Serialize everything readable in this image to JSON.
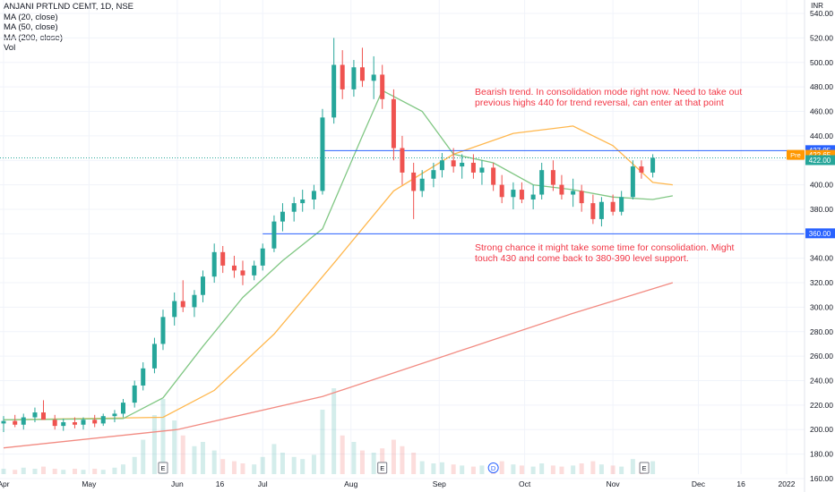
{
  "legend": {
    "symbol": "ANJANI PRTLND CEMT, 1D, NSE",
    "indicators": [
      "MA (20, close)",
      "MA (50, close)",
      "MA (200, close)",
      "Vol"
    ]
  },
  "currency": "INR",
  "annotations": {
    "bearish": [
      "Bearish trend. In consolidation mode right now. Need to take out",
      "previous highs 440 for trend reversal, can enter at that point"
    ],
    "strong": [
      "Strong chance it might take some time for consolidation. Might",
      "touch 430 and come back to 380-390 level support."
    ]
  },
  "colors": {
    "up": "#26a69a",
    "down": "#ef5350",
    "ma20": "#81c784",
    "ma50": "#ffb74d",
    "ma200": "#f28b82",
    "hline": "#2962ff",
    "annotation": "#f23645"
  },
  "chart_data": {
    "type": "candlestick",
    "y_ticks": [
      160,
      180,
      200,
      220,
      240,
      260,
      280,
      300,
      320,
      340,
      360,
      380,
      400,
      420,
      440,
      460,
      480,
      500,
      520,
      540
    ],
    "ylim": [
      149,
      551
    ],
    "x_labels": [
      {
        "label": "Apr",
        "date": "2021-04-01"
      },
      {
        "label": "May",
        "date": "2021-05-01"
      },
      {
        "label": "Jun",
        "date": "2021-06-01"
      },
      {
        "label": "16",
        "date": "2021-06-16"
      },
      {
        "label": "Jul",
        "date": "2021-07-01"
      },
      {
        "label": "Aug",
        "date": "2021-08-01"
      },
      {
        "label": "Sep",
        "date": "2021-09-01"
      },
      {
        "label": "Oct",
        "date": "2021-10-01"
      },
      {
        "label": "Nov",
        "date": "2021-11-01"
      },
      {
        "label": "Dec",
        "date": "2021-12-01"
      },
      {
        "label": "16",
        "date": "2021-12-16"
      },
      {
        "label": "2022",
        "date": "2022-01-01"
      }
    ],
    "price_labels": [
      {
        "value": 427.95,
        "text": "427.95",
        "kind": "line"
      },
      {
        "value": 422.65,
        "text": "422.65",
        "kind": "pre",
        "tag": "Pre"
      },
      {
        "value": 422.0,
        "text": "422.00",
        "kind": "last"
      },
      {
        "value": 360.0,
        "text": "360.00",
        "kind": "line"
      }
    ],
    "horizontal_lines": [
      {
        "value": 427.95,
        "from_date": "2021-07-22"
      },
      {
        "value": 360.0,
        "from_date": "2021-07-01"
      }
    ],
    "earnings_markers": [
      {
        "date": "2021-05-27",
        "label": "E"
      },
      {
        "date": "2021-08-12",
        "label": "E"
      },
      {
        "date": "2021-09-20",
        "label": "D"
      },
      {
        "date": "2021-11-12",
        "label": "E"
      }
    ],
    "ohlc": [
      [
        "2021-04-01",
        205,
        211,
        198,
        207
      ],
      [
        "2021-04-05",
        207,
        212,
        202,
        204
      ],
      [
        "2021-04-08",
        204,
        213,
        200,
        210
      ],
      [
        "2021-04-12",
        210,
        218,
        206,
        214
      ],
      [
        "2021-04-15",
        214,
        224,
        210,
        208
      ],
      [
        "2021-04-19",
        208,
        212,
        200,
        203
      ],
      [
        "2021-04-22",
        203,
        209,
        199,
        206
      ],
      [
        "2021-04-26",
        206,
        210,
        201,
        204
      ],
      [
        "2021-04-29",
        204,
        210,
        200,
        208
      ],
      [
        "2021-05-03",
        208,
        212,
        202,
        205
      ],
      [
        "2021-05-06",
        205,
        213,
        203,
        211
      ],
      [
        "2021-05-10",
        211,
        216,
        206,
        213
      ],
      [
        "2021-05-13",
        213,
        225,
        210,
        222
      ],
      [
        "2021-05-17",
        222,
        240,
        218,
        236
      ],
      [
        "2021-05-20",
        236,
        255,
        232,
        250
      ],
      [
        "2021-05-24",
        250,
        275,
        246,
        270
      ],
      [
        "2021-05-27",
        270,
        298,
        265,
        292
      ],
      [
        "2021-05-31",
        292,
        312,
        285,
        305
      ],
      [
        "2021-06-03",
        305,
        322,
        296,
        300
      ],
      [
        "2021-06-07",
        300,
        314,
        292,
        310
      ],
      [
        "2021-06-10",
        310,
        330,
        304,
        325
      ],
      [
        "2021-06-14",
        325,
        352,
        320,
        345
      ],
      [
        "2021-06-17",
        345,
        350,
        328,
        334
      ],
      [
        "2021-06-21",
        334,
        342,
        324,
        330
      ],
      [
        "2021-06-24",
        330,
        338,
        318,
        326
      ],
      [
        "2021-06-28",
        326,
        338,
        322,
        334
      ],
      [
        "2021-07-01",
        334,
        352,
        330,
        348
      ],
      [
        "2021-07-05",
        348,
        375,
        345,
        370
      ],
      [
        "2021-07-08",
        370,
        385,
        362,
        378
      ],
      [
        "2021-07-12",
        378,
        390,
        370,
        385
      ],
      [
        "2021-07-15",
        385,
        396,
        378,
        388
      ],
      [
        "2021-07-19",
        388,
        400,
        380,
        395
      ],
      [
        "2021-07-22",
        395,
        462,
        392,
        455
      ],
      [
        "2021-07-26",
        455,
        520,
        450,
        498
      ],
      [
        "2021-07-29",
        498,
        510,
        470,
        478
      ],
      [
        "2021-08-02",
        478,
        502,
        472,
        496
      ],
      [
        "2021-08-05",
        496,
        512,
        480,
        485
      ],
      [
        "2021-08-09",
        485,
        505,
        470,
        490
      ],
      [
        "2021-08-12",
        490,
        498,
        462,
        470
      ],
      [
        "2021-08-16",
        470,
        478,
        420,
        430
      ],
      [
        "2021-08-19",
        430,
        440,
        400,
        410
      ],
      [
        "2021-08-23",
        410,
        418,
        372,
        395
      ],
      [
        "2021-08-26",
        395,
        412,
        390,
        405
      ],
      [
        "2021-08-30",
        405,
        418,
        398,
        412
      ],
      [
        "2021-09-02",
        412,
        426,
        406,
        420
      ],
      [
        "2021-09-06",
        420,
        430,
        410,
        415
      ],
      [
        "2021-09-09",
        415,
        425,
        405,
        418
      ],
      [
        "2021-09-13",
        418,
        425,
        405,
        410
      ],
      [
        "2021-09-16",
        410,
        420,
        400,
        414
      ],
      [
        "2021-09-20",
        414,
        418,
        395,
        400
      ],
      [
        "2021-09-23",
        400,
        408,
        385,
        390
      ],
      [
        "2021-09-27",
        390,
        402,
        380,
        396
      ],
      [
        "2021-09-30",
        396,
        402,
        385,
        388
      ],
      [
        "2021-10-04",
        388,
        400,
        380,
        392
      ],
      [
        "2021-10-07",
        392,
        418,
        388,
        412
      ],
      [
        "2021-10-11",
        412,
        420,
        395,
        400
      ],
      [
        "2021-10-14",
        400,
        408,
        388,
        392
      ],
      [
        "2021-10-18",
        392,
        405,
        382,
        395
      ],
      [
        "2021-10-21",
        395,
        400,
        378,
        385
      ],
      [
        "2021-10-25",
        385,
        392,
        368,
        372
      ],
      [
        "2021-10-28",
        372,
        390,
        366,
        386
      ],
      [
        "2021-11-01",
        386,
        392,
        375,
        378
      ],
      [
        "2021-11-04",
        378,
        395,
        375,
        390
      ],
      [
        "2021-11-08",
        390,
        420,
        388,
        415
      ],
      [
        "2021-11-11",
        415,
        420,
        405,
        410
      ],
      [
        "2021-11-15",
        410,
        425,
        406,
        422
      ]
    ],
    "volume_max": 1.0,
    "volume": [
      0.05,
      0.04,
      0.06,
      0.05,
      0.07,
      0.05,
      0.04,
      0.05,
      0.04,
      0.05,
      0.04,
      0.06,
      0.09,
      0.16,
      0.32,
      0.55,
      0.7,
      0.5,
      0.36,
      0.26,
      0.3,
      0.22,
      0.14,
      0.12,
      0.1,
      0.09,
      0.16,
      0.28,
      0.2,
      0.16,
      0.14,
      0.18,
      0.6,
      0.8,
      0.36,
      0.3,
      0.22,
      0.2,
      0.24,
      0.32,
      0.26,
      0.2,
      0.12,
      0.1,
      0.11,
      0.09,
      0.08,
      0.07,
      0.08,
      0.1,
      0.12,
      0.09,
      0.08,
      0.07,
      0.1,
      0.08,
      0.07,
      0.08,
      0.1,
      0.12,
      0.09,
      0.08,
      0.07,
      0.14,
      0.1,
      0.12
    ],
    "ma20": [
      [
        "2021-04-01",
        208
      ],
      [
        "2021-05-13",
        209
      ],
      [
        "2021-05-27",
        226
      ],
      [
        "2021-06-10",
        268
      ],
      [
        "2021-06-24",
        308
      ],
      [
        "2021-07-08",
        338
      ],
      [
        "2021-07-22",
        364
      ],
      [
        "2021-08-05",
        440
      ],
      [
        "2021-08-12",
        477
      ],
      [
        "2021-08-26",
        460
      ],
      [
        "2021-09-06",
        425
      ],
      [
        "2021-09-20",
        418
      ],
      [
        "2021-10-04",
        400
      ],
      [
        "2021-10-18",
        396
      ],
      [
        "2021-11-01",
        390
      ],
      [
        "2021-11-15",
        388
      ],
      [
        "2021-11-22",
        391
      ]
    ],
    "ma50": [
      [
        "2021-04-01",
        208
      ],
      [
        "2021-05-27",
        210
      ],
      [
        "2021-06-14",
        232
      ],
      [
        "2021-07-05",
        278
      ],
      [
        "2021-07-26",
        336
      ],
      [
        "2021-08-16",
        395
      ],
      [
        "2021-09-06",
        425
      ],
      [
        "2021-09-27",
        442
      ],
      [
        "2021-10-18",
        448
      ],
      [
        "2021-11-01",
        432
      ],
      [
        "2021-11-15",
        402
      ],
      [
        "2021-11-22",
        400
      ]
    ],
    "ma200": [
      [
        "2021-04-01",
        185
      ],
      [
        "2021-06-01",
        200
      ],
      [
        "2021-07-22",
        227
      ],
      [
        "2021-09-13",
        268
      ],
      [
        "2021-10-18",
        295
      ],
      [
        "2021-11-22",
        320
      ]
    ]
  }
}
